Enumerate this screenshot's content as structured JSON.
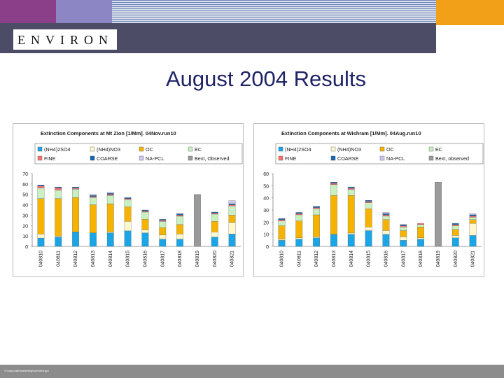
{
  "header": {
    "logo_text": "ENVIRON"
  },
  "slide": {
    "title": "August 2004 Results"
  },
  "footer": {
    "path_text": "V:\\corporate\\marketing\\overview.ppt"
  },
  "colors": {
    "nh42so4": "#19a5e6",
    "nh4no3": "#fff8cc",
    "oc": "#f5b300",
    "ec": "#c8f0c0",
    "fine": "#ff6f6f",
    "coarse": "#1464b4",
    "na_pcl": "#c8c8f0",
    "bext_observed": "#9a9a9a"
  },
  "chart_data": [
    {
      "type": "bar",
      "stacked": true,
      "title": "Extinction Components at Mt Zion [1/Mm]. 04Nov.run10",
      "legend": [
        "(NH4)2SO4",
        "(NH4)NO3",
        "OC",
        "EC",
        "FINE",
        "COARSE",
        "NA-PCL",
        "Bext, Observed"
      ],
      "categories": [
        "040810",
        "040811",
        "040812",
        "040813",
        "040814",
        "040815",
        "040816",
        "040817",
        "040818",
        "040819",
        "040820",
        "040821"
      ],
      "ylim": [
        0,
        70
      ],
      "yticks": [
        0,
        10,
        20,
        30,
        40,
        50,
        60,
        70
      ],
      "series": [
        {
          "name": "(NH4)2SO4",
          "values": [
            8,
            9,
            14,
            13,
            13,
            15,
            13,
            7,
            7,
            0,
            9,
            12
          ]
        },
        {
          "name": "(NH4)NO3",
          "values": [
            4,
            1,
            0,
            0,
            1,
            9,
            3,
            4,
            5,
            0,
            5,
            11
          ]
        },
        {
          "name": "OC",
          "values": [
            34,
            36,
            33,
            27,
            27,
            14,
            10,
            7,
            9,
            0,
            10,
            7
          ]
        },
        {
          "name": "EC",
          "values": [
            10,
            8,
            8,
            7,
            8,
            7,
            7,
            6,
            8,
            0,
            7,
            9
          ]
        },
        {
          "name": "FINE",
          "values": [
            2,
            2,
            1,
            1,
            1,
            1,
            1,
            1,
            1,
            0,
            1,
            1
          ]
        },
        {
          "name": "COARSE",
          "values": [
            1,
            1,
            1,
            1,
            1,
            1,
            1,
            1,
            1,
            0,
            1,
            1
          ]
        },
        {
          "name": "NA-PCL",
          "values": [
            0,
            0,
            0,
            1,
            1,
            0,
            0,
            0,
            1,
            0,
            0,
            3
          ]
        },
        {
          "name": "Bext, Observed",
          "values": [
            0,
            0,
            0,
            0,
            0,
            0,
            0,
            0,
            0,
            50,
            0,
            0
          ]
        }
      ]
    },
    {
      "type": "bar",
      "stacked": true,
      "title": "Extinction Components at Wishram [1/Mm]. 04Aug.run10",
      "legend": [
        "(NH4)2SO4",
        "(NH4)NO3",
        "OC",
        "EC",
        "FINE",
        "COARSE",
        "NA-PCL",
        "Bext, observed"
      ],
      "categories": [
        "040810",
        "040811",
        "040812",
        "040813",
        "040814",
        "040815",
        "040816",
        "040817",
        "040818",
        "040819",
        "040820",
        "040821"
      ],
      "ylim": [
        0,
        60
      ],
      "yticks": [
        0,
        10,
        20,
        30,
        40,
        50,
        60
      ],
      "series": [
        {
          "name": "(NH4)2SO4",
          "values": [
            5,
            6,
            7,
            10,
            10,
            13,
            10,
            5,
            6,
            0,
            7,
            9
          ]
        },
        {
          "name": "(NH4)NO3",
          "values": [
            1,
            1,
            1,
            0,
            1,
            3,
            3,
            3,
            1,
            0,
            2,
            10
          ]
        },
        {
          "name": "OC",
          "values": [
            11,
            14,
            18,
            32,
            31,
            15,
            9,
            5,
            9,
            0,
            5,
            3
          ]
        },
        {
          "name": "EC",
          "values": [
            4,
            5,
            5,
            9,
            5,
            5,
            3,
            3,
            2,
            0,
            3,
            2
          ]
        },
        {
          "name": "FINE",
          "values": [
            1,
            1,
            1,
            1,
            1,
            1,
            1,
            1,
            1,
            0,
            1,
            1
          ]
        },
        {
          "name": "COARSE",
          "values": [
            1,
            1,
            1,
            1,
            1,
            1,
            1,
            1,
            0,
            0,
            1,
            1
          ]
        },
        {
          "name": "NA-PCL",
          "values": [
            0,
            0,
            0,
            0,
            0,
            0,
            1,
            0,
            0,
            0,
            0,
            1
          ]
        },
        {
          "name": "Bext, observed",
          "values": [
            0,
            0,
            0,
            0,
            0,
            0,
            0,
            0,
            0,
            53,
            0,
            0
          ]
        }
      ]
    }
  ]
}
